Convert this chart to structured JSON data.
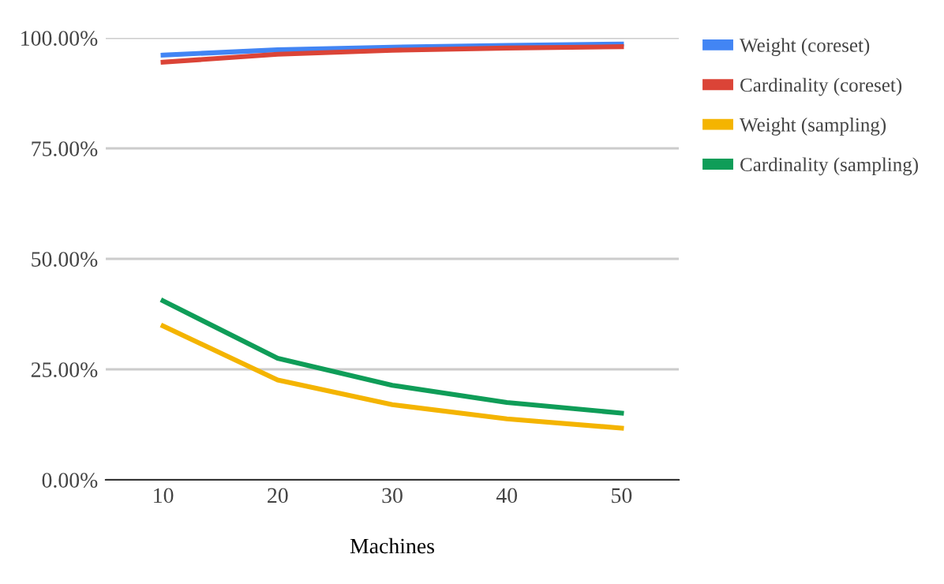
{
  "chart_data": {
    "type": "line",
    "xlabel": "Machines",
    "x": [
      10,
      20,
      30,
      40,
      50
    ],
    "series": [
      {
        "name": "Weight (coreset)",
        "color": "#4285f4",
        "values": [
          96.1,
          97.3,
          97.9,
          98.3,
          98.6
        ]
      },
      {
        "name": "Cardinality (coreset)",
        "color": "#db4437",
        "values": [
          94.5,
          96.3,
          97.2,
          97.7,
          98.0
        ]
      },
      {
        "name": "Weight (sampling)",
        "color": "#f4b400",
        "values": [
          34.8,
          22.6,
          17.0,
          13.8,
          11.7
        ]
      },
      {
        "name": "Cardinality (sampling)",
        "color": "#0f9d58",
        "values": [
          40.5,
          27.5,
          21.4,
          17.5,
          15.1
        ]
      }
    ],
    "xlim": [
      5,
      55
    ],
    "xticks": [
      10,
      20,
      30,
      40,
      50
    ],
    "ylim": [
      0,
      100
    ],
    "yticks": [
      {
        "value": 0,
        "label": "0.00%"
      },
      {
        "value": 25,
        "label": "25.00%"
      },
      {
        "value": 50,
        "label": "50.00%"
      },
      {
        "value": 75,
        "label": "75.00%"
      },
      {
        "value": 100,
        "label": "100.00%"
      }
    ],
    "grid": "y",
    "legend": "right",
    "marker": "none",
    "line_style": "solid"
  }
}
